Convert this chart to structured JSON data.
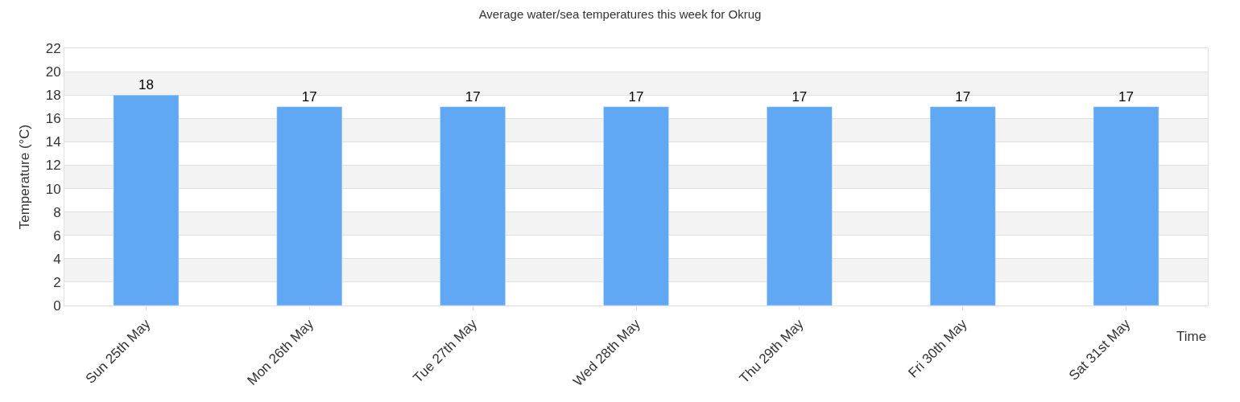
{
  "chart_data": {
    "type": "bar",
    "title": "Average water/sea temperatures this week for Okrug",
    "xlabel": "Time",
    "ylabel": "Temperature (°C)",
    "categories": [
      "Sun 25th May",
      "Mon 26th May",
      "Tue 27th May",
      "Wed 28th May",
      "Thu 29th May",
      "Fri 30th May",
      "Sat 31st May"
    ],
    "values": [
      18,
      17,
      17,
      17,
      17,
      17,
      17
    ],
    "color": "#61a8f4",
    "ylim": [
      0,
      22
    ],
    "yticks": [
      0,
      2,
      4,
      6,
      8,
      10,
      12,
      14,
      16,
      18,
      20,
      22
    ],
    "grid": "y",
    "data_labels": true,
    "bands": [
      {
        "axis": "y",
        "from": 2,
        "to": 4,
        "color": "#f3f3f3"
      },
      {
        "axis": "y",
        "from": 6,
        "to": 8,
        "color": "#f3f3f3"
      },
      {
        "axis": "y",
        "from": 10,
        "to": 12,
        "color": "#f3f3f3"
      },
      {
        "axis": "y",
        "from": 14,
        "to": 16,
        "color": "#f3f3f3"
      },
      {
        "axis": "y",
        "from": 18,
        "to": 20,
        "color": "#f3f3f3"
      }
    ]
  }
}
